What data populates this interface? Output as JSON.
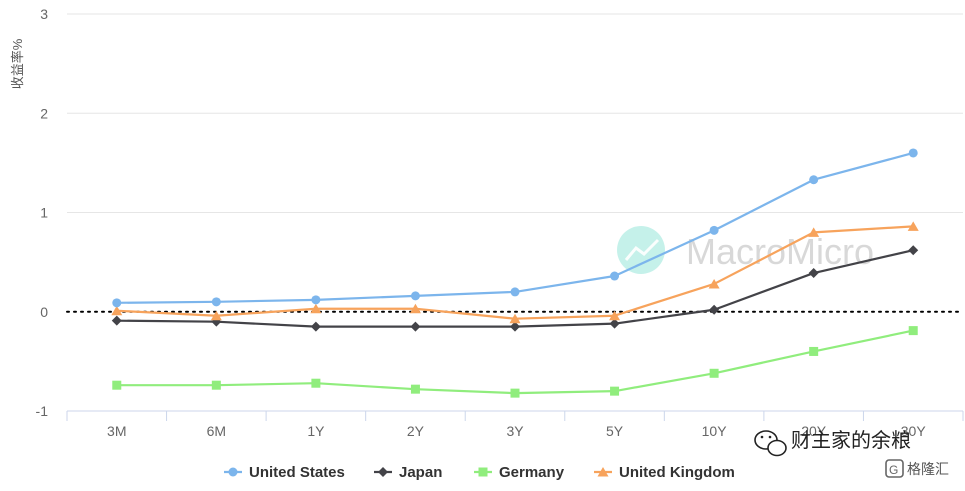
{
  "chart_data": {
    "type": "line",
    "title": "",
    "xlabel": "",
    "ylabel": "收益率%",
    "categories": [
      "3M",
      "6M",
      "1Y",
      "2Y",
      "3Y",
      "5Y",
      "10Y",
      "20Y",
      "30Y"
    ],
    "ylim": [
      -1,
      3
    ],
    "yticks": [
      "3",
      "2",
      "1",
      "0",
      "-1"
    ],
    "grid": true,
    "legend_position": "bottom",
    "zero_line_style": "dotted",
    "series": [
      {
        "name": "United States",
        "color": "#7cb5ec",
        "marker": "circle",
        "values": [
          0.09,
          0.1,
          0.12,
          0.16,
          0.2,
          0.36,
          0.82,
          1.33,
          1.6
        ]
      },
      {
        "name": "Japan",
        "color": "#434348",
        "marker": "diamond",
        "values": [
          -0.09,
          -0.1,
          -0.15,
          -0.15,
          -0.15,
          -0.12,
          0.02,
          0.39,
          0.62
        ]
      },
      {
        "name": "Germany",
        "color": "#90ed7d",
        "marker": "square",
        "values": [
          -0.74,
          -0.74,
          -0.72,
          -0.78,
          -0.82,
          -0.8,
          -0.62,
          -0.4,
          -0.19
        ]
      },
      {
        "name": "United Kingdom",
        "color": "#f7a35c",
        "marker": "triangle",
        "values": [
          0.01,
          -0.04,
          0.03,
          0.03,
          -0.07,
          -0.04,
          0.28,
          0.8,
          0.86
        ]
      }
    ]
  },
  "watermark": {
    "text": "MacroMicro",
    "icon": "macromicro-logo-icon",
    "color": "#7fe0d0"
  },
  "overlay": {
    "wechat_icon": "wechat-icon",
    "wechat_text": "财主家的余粮",
    "badge_icon": "gelonghui-logo-icon",
    "badge_text": "格隆汇"
  }
}
